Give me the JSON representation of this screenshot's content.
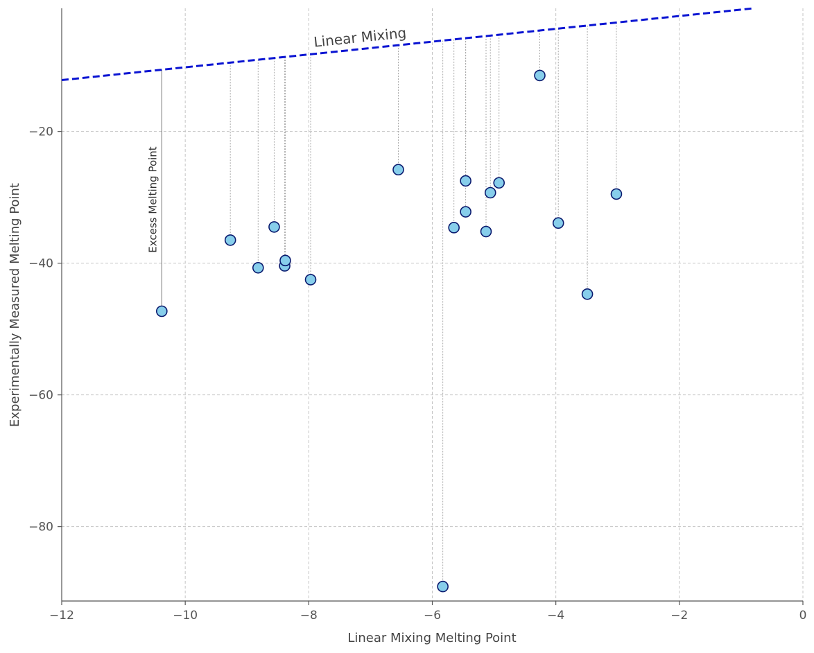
{
  "chart_data": {
    "type": "scatter",
    "title": "",
    "xlabel": "Linear Mixing Melting Point",
    "ylabel": "Experimentally Measured Melting Point",
    "xlim": [
      -12,
      0
    ],
    "ylim": [
      -91.3,
      -1.3
    ],
    "xticks": [
      -12,
      -10,
      -8,
      -6,
      -4,
      -2,
      0
    ],
    "yticks": [
      -20,
      -40,
      -60,
      -80
    ],
    "grid": true,
    "reference_line": {
      "label": "Linear Mixing",
      "style": "dashed",
      "color": "#0a14d2",
      "x": [
        -12,
        -0.8
      ],
      "y": [
        -12.2,
        -1.3
      ]
    },
    "annotation": {
      "text": "Excess Melting Point",
      "x": -10.38
    },
    "marker_fill": "#87ceeb",
    "marker_edge": "#0a1a6e",
    "points": [
      {
        "x": -10.38,
        "y": -47.3
      },
      {
        "x": -9.27,
        "y": -36.5
      },
      {
        "x": -8.82,
        "y": -40.7
      },
      {
        "x": -8.56,
        "y": -34.5
      },
      {
        "x": -8.39,
        "y": -40.4
      },
      {
        "x": -8.38,
        "y": -39.6
      },
      {
        "x": -7.97,
        "y": -42.5
      },
      {
        "x": -6.55,
        "y": -25.8
      },
      {
        "x": -5.83,
        "y": -89.1
      },
      {
        "x": -5.65,
        "y": -34.6
      },
      {
        "x": -5.46,
        "y": -27.5
      },
      {
        "x": -5.46,
        "y": -32.2
      },
      {
        "x": -5.13,
        "y": -35.2
      },
      {
        "x": -5.06,
        "y": -29.3
      },
      {
        "x": -4.92,
        "y": -27.8
      },
      {
        "x": -4.26,
        "y": -11.5
      },
      {
        "x": -3.96,
        "y": -33.9
      },
      {
        "x": -3.49,
        "y": -44.7
      },
      {
        "x": -3.02,
        "y": -29.5
      }
    ]
  }
}
